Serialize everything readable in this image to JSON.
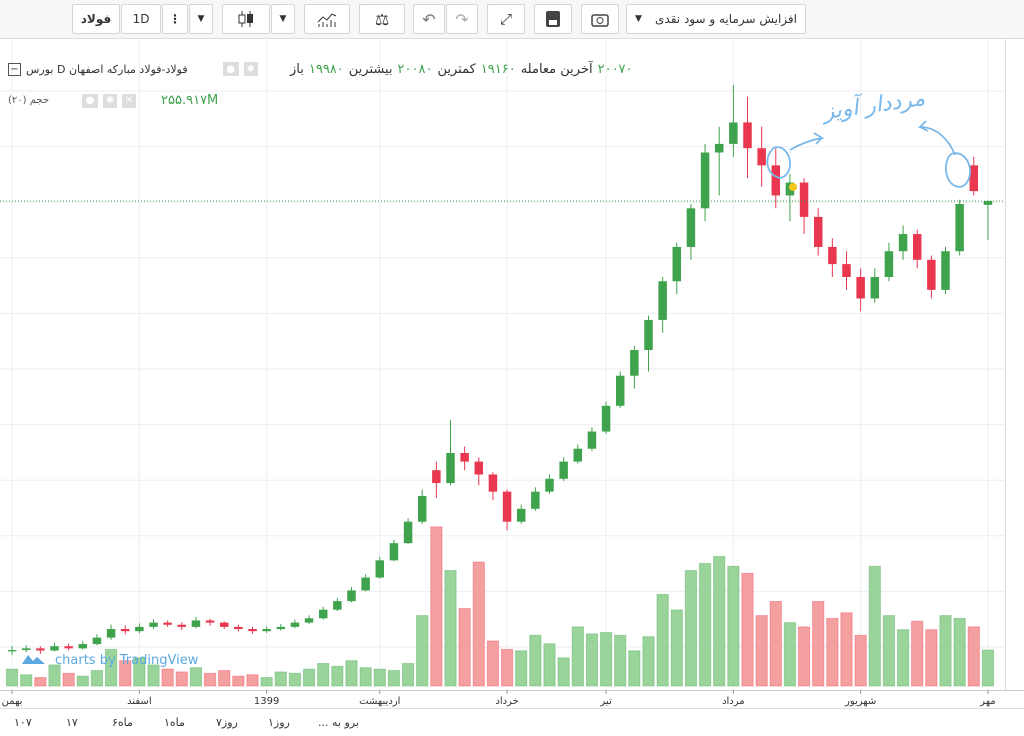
{
  "toolbar": {
    "symbol": "فولاد",
    "interval": "1D",
    "event_menu": "افزایش سرمایه و سود نقدی"
  },
  "chart_data": {
    "type": "candlestick",
    "legend_title": "بورس D فولاد-فولاد مبارکه اصفهان",
    "ohlc_names": [
      "باز",
      "بیشترین",
      "کمترین",
      "آخرین معامله"
    ],
    "ohlc_labels": [
      "۱۹۹۸۰",
      "۲۰۰۸۰",
      "۱۹۱۶۰",
      "۲۰۰۷۰"
    ],
    "volume_name": "حجم (۲۰)",
    "volume_label": "۲۵۵.۹۱۷M",
    "annotation": "مرددار آویز",
    "categories": [
      "بهمن",
      null,
      null,
      null,
      null,
      null,
      null,
      null,
      null,
      "اسفند",
      null,
      null,
      null,
      null,
      null,
      null,
      null,
      null,
      "1399",
      null,
      null,
      null,
      null,
      null,
      null,
      null,
      "اردیبهشت",
      null,
      null,
      null,
      null,
      null,
      null,
      null,
      null,
      "خرداد",
      null,
      null,
      null,
      null,
      null,
      null,
      "تیر",
      null,
      null,
      null,
      null,
      null,
      null,
      null,
      null,
      "مرداد",
      null,
      null,
      null,
      null,
      null,
      null,
      null,
      null,
      "شهریور",
      null,
      null,
      null,
      null,
      null,
      null,
      null,
      null,
      "مهر"
    ],
    "ohlc": [
      [
        9580,
        9700,
        9500,
        9610
      ],
      [
        9610,
        9720,
        9560,
        9650
      ],
      [
        9650,
        9700,
        9520,
        9600
      ],
      [
        9600,
        9780,
        9580,
        9700
      ],
      [
        9700,
        9760,
        9600,
        9650
      ],
      [
        9650,
        9820,
        9620,
        9750
      ],
      [
        9750,
        9980,
        9720,
        9900
      ],
      [
        9900,
        10200,
        9850,
        10100
      ],
      [
        10100,
        10180,
        9980,
        10050
      ],
      [
        10050,
        10230,
        10000,
        10150
      ],
      [
        10150,
        10330,
        10100,
        10250
      ],
      [
        10250,
        10300,
        10150,
        10200
      ],
      [
        10200,
        10260,
        10080,
        10150
      ],
      [
        10150,
        10380,
        10120,
        10300
      ],
      [
        10300,
        10340,
        10180,
        10250
      ],
      [
        10250,
        10280,
        10100,
        10150
      ],
      [
        10150,
        10200,
        10040,
        10100
      ],
      [
        10100,
        10150,
        9990,
        10050
      ],
      [
        10050,
        10160,
        10010,
        10100
      ],
      [
        10100,
        10220,
        10060,
        10150
      ],
      [
        10150,
        10320,
        10120,
        10250
      ],
      [
        10250,
        10420,
        10220,
        10350
      ],
      [
        10350,
        10620,
        10320,
        10550
      ],
      [
        10550,
        10820,
        10520,
        10750
      ],
      [
        10750,
        11080,
        10720,
        11000
      ],
      [
        11000,
        11380,
        10980,
        11300
      ],
      [
        11300,
        11780,
        11270,
        11700
      ],
      [
        11700,
        12180,
        11680,
        12100
      ],
      [
        12100,
        12680,
        12080,
        12600
      ],
      [
        12600,
        13350,
        12550,
        13200
      ],
      [
        13800,
        14000,
        13150,
        13500
      ],
      [
        13500,
        14970,
        13450,
        14200
      ],
      [
        14200,
        14350,
        13800,
        14000
      ],
      [
        14000,
        14100,
        13450,
        13700
      ],
      [
        13700,
        13750,
        13100,
        13300
      ],
      [
        13300,
        13350,
        12400,
        12600
      ],
      [
        12600,
        13000,
        12550,
        12900
      ],
      [
        12900,
        13400,
        12850,
        13300
      ],
      [
        13300,
        13700,
        13250,
        13600
      ],
      [
        13600,
        14100,
        13550,
        14000
      ],
      [
        14000,
        14400,
        13950,
        14300
      ],
      [
        14300,
        14800,
        14250,
        14700
      ],
      [
        14700,
        15400,
        14650,
        15300
      ],
      [
        15300,
        16100,
        15250,
        16000
      ],
      [
        16000,
        16700,
        15700,
        16600
      ],
      [
        16600,
        17400,
        16100,
        17300
      ],
      [
        17300,
        18300,
        17000,
        18200
      ],
      [
        18200,
        19100,
        17900,
        19000
      ],
      [
        19000,
        20000,
        18700,
        19900
      ],
      [
        19900,
        21400,
        19600,
        21200
      ],
      [
        21200,
        21800,
        20200,
        21400
      ],
      [
        21400,
        22770,
        21100,
        21900
      ],
      [
        21900,
        22500,
        20600,
        21300
      ],
      [
        21300,
        21800,
        20400,
        20900
      ],
      [
        20900,
        21300,
        19900,
        20200
      ],
      [
        20200,
        20700,
        19600,
        20500
      ],
      [
        20500,
        20600,
        19300,
        19700
      ],
      [
        19700,
        19900,
        18800,
        19000
      ],
      [
        19000,
        19200,
        18300,
        18600
      ],
      [
        18600,
        18900,
        18000,
        18300
      ],
      [
        18300,
        18500,
        17500,
        17800
      ],
      [
        17800,
        18500,
        17700,
        18300
      ],
      [
        18300,
        19100,
        18200,
        18900
      ],
      [
        18900,
        19500,
        18700,
        19300
      ],
      [
        19300,
        19400,
        18500,
        18700
      ],
      [
        18700,
        18800,
        17800,
        18000
      ],
      [
        18000,
        19000,
        17900,
        18900
      ],
      [
        18900,
        20100,
        18800,
        20000
      ],
      [
        20900,
        21100,
        20200,
        20300
      ],
      [
        19980,
        20080,
        19160,
        20070
      ]
    ],
    "volume": [
      120,
      80,
      60,
      150,
      90,
      70,
      110,
      260,
      180,
      200,
      150,
      120,
      100,
      130,
      90,
      110,
      70,
      80,
      60,
      100,
      90,
      120,
      160,
      140,
      180,
      130,
      120,
      110,
      160,
      500,
      1130,
      820,
      550,
      880,
      320,
      260,
      250,
      360,
      300,
      200,
      420,
      370,
      380,
      360,
      250,
      350,
      650,
      540,
      820,
      870,
      920,
      850,
      800,
      500,
      600,
      450,
      420,
      600,
      480,
      520,
      360,
      850,
      500,
      400,
      460,
      400,
      500,
      480,
      420,
      255.917
    ],
    "ylim": [
      8680,
      23820
    ],
    "volume_ylim": [
      0,
      1150
    ],
    "up_color": "#3fa34d",
    "down_color": "#e8374f",
    "volume_up_color": "#9ad49a",
    "volume_down_color": "#f5a0a0",
    "grid": true,
    "current_price_line": true
  },
  "range_buttons": [
    "۱۰۷",
    "۱۷",
    "ماه۶",
    "ماه۱",
    "روز۷",
    "روز۱",
    "... برو به"
  ],
  "watermark": "charts by TradingView"
}
